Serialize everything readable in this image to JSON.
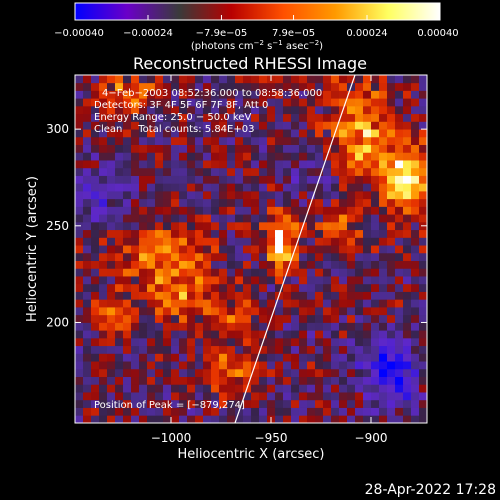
{
  "chart_data": {
    "type": "heatmap",
    "title": "Reconstructed RHESSI Image",
    "xlabel": "Heliocentric X (arcsec)",
    "ylabel": "Heliocentric Y (arcsec)",
    "xlim": [
      -1048,
      -872
    ],
    "ylim": [
      148,
      328
    ],
    "x_ticks": [
      -1000,
      -950,
      -900
    ],
    "x_tick_labels": [
      "−1000",
      "−950",
      "−900"
    ],
    "y_ticks": [
      200,
      250,
      300
    ],
    "y_tick_labels": [
      "200",
      "250",
      "300"
    ],
    "colorbar": {
      "range": [
        -0.0004,
        0.0004
      ],
      "ticks": [
        -0.0004,
        -0.00024,
        -7.9e-05,
        7.9e-05,
        0.00024,
        0.0004
      ],
      "tick_labels": [
        "−0.00040",
        "−0.00024",
        "−7.9e−05",
        "7.9e−05",
        "0.00024",
        "0.00040"
      ],
      "label_parts": [
        "(photons cm",
        "−2",
        " s",
        "−1",
        " asec",
        "−2",
        ")"
      ],
      "colors": [
        "#0000ff",
        "#6a00c8",
        "#3a3a3a",
        "#b80000",
        "#ff5000",
        "#ff9a00",
        "#ffff60",
        "#ffffff"
      ]
    },
    "info_lines": [
      "4−Feb−2003 08:52:36.000 to 08:58:36.000",
      "Detectors: 3F 4F 5F 6F 7F 8F, Att 0",
      "Energy Range: 25.0 − 50.0 keV",
      "Clean     Total counts: 5.84E+03"
    ],
    "peak_label": "Position of Peak = [−879,274]",
    "limb_line": [
      [
        -968,
        148
      ],
      [
        -908,
        328
      ]
    ],
    "sources": [
      {
        "x": -881,
        "y": 274,
        "amp": 1.0,
        "sx": 9,
        "sy": 12
      },
      {
        "x": -945,
        "y": 241,
        "amp": 0.9,
        "sx": 6,
        "sy": 10
      },
      {
        "x": -1005,
        "y": 236,
        "amp": 0.6,
        "sx": 18,
        "sy": 10
      },
      {
        "x": -995,
        "y": 212,
        "amp": 0.55,
        "sx": 14,
        "sy": 10
      },
      {
        "x": -1022,
        "y": 318,
        "amp": 0.55,
        "sx": 10,
        "sy": 8
      },
      {
        "x": -905,
        "y": 300,
        "amp": 0.7,
        "sx": 12,
        "sy": 18
      },
      {
        "x": -970,
        "y": 175,
        "amp": 0.55,
        "sx": 12,
        "sy": 8
      },
      {
        "x": -1030,
        "y": 205,
        "amp": 0.45,
        "sx": 8,
        "sy": 8
      },
      {
        "x": -915,
        "y": 250,
        "amp": 0.45,
        "sx": 8,
        "sy": 10
      },
      {
        "x": -965,
        "y": 205,
        "amp": 0.4,
        "sx": 8,
        "sy": 6
      }
    ],
    "negative_sources": [
      {
        "x": -890,
        "y": 175,
        "amp": 0.9,
        "sx": 10,
        "sy": 12
      },
      {
        "x": -1035,
        "y": 265,
        "amp": 0.4,
        "sx": 10,
        "sy": 12
      },
      {
        "x": -930,
        "y": 275,
        "amp": 0.35,
        "sx": 8,
        "sy": 8
      }
    ]
  },
  "footer": {
    "timestamp": "28-Apr-2022 17:28"
  }
}
